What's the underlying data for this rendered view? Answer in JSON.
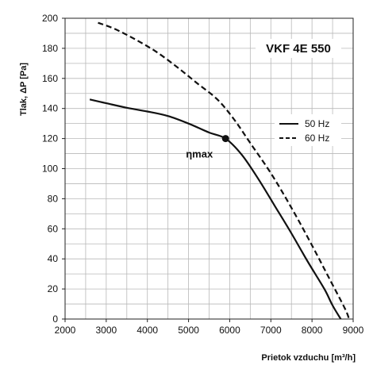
{
  "chart_data": {
    "type": "line",
    "title": "VKF 4E 550",
    "xlabel_main": "Prietok vzduchu",
    "xlabel_unit": "[m³/h]",
    "ylabel": "Tlak, ΔP [Pa]",
    "xlim": [
      2000,
      9000
    ],
    "ylim": [
      0,
      200
    ],
    "x_ticks": [
      2000,
      3000,
      4000,
      5000,
      6000,
      7000,
      8000,
      9000
    ],
    "y_ticks": [
      0,
      20,
      40,
      60,
      80,
      100,
      120,
      140,
      160,
      180,
      200
    ],
    "grid": true,
    "legend_position": "right",
    "series": [
      {
        "name": "50 Hz",
        "style": "solid",
        "points": [
          [
            2600,
            146
          ],
          [
            3000,
            143.5
          ],
          [
            3500,
            140.5
          ],
          [
            4000,
            138
          ],
          [
            4500,
            135
          ],
          [
            5000,
            130
          ],
          [
            5500,
            124
          ],
          [
            5900,
            120
          ],
          [
            6300,
            109
          ],
          [
            6700,
            93
          ],
          [
            7100,
            75
          ],
          [
            7500,
            57
          ],
          [
            7900,
            38
          ],
          [
            8300,
            20
          ],
          [
            8500,
            9
          ],
          [
            8700,
            0
          ]
        ]
      },
      {
        "name": "60 Hz",
        "style": "dashed",
        "points": [
          [
            2800,
            197
          ],
          [
            3200,
            193
          ],
          [
            3700,
            186
          ],
          [
            4200,
            178
          ],
          [
            4700,
            168
          ],
          [
            5200,
            157
          ],
          [
            5700,
            146
          ],
          [
            6100,
            133
          ],
          [
            6500,
            117
          ],
          [
            7000,
            97
          ],
          [
            7500,
            74
          ],
          [
            8000,
            49
          ],
          [
            8400,
            28
          ],
          [
            8800,
            7
          ],
          [
            8900,
            0
          ]
        ]
      }
    ],
    "annotations": [
      {
        "text": "ηmax",
        "x": 5900,
        "y": 120
      }
    ]
  }
}
